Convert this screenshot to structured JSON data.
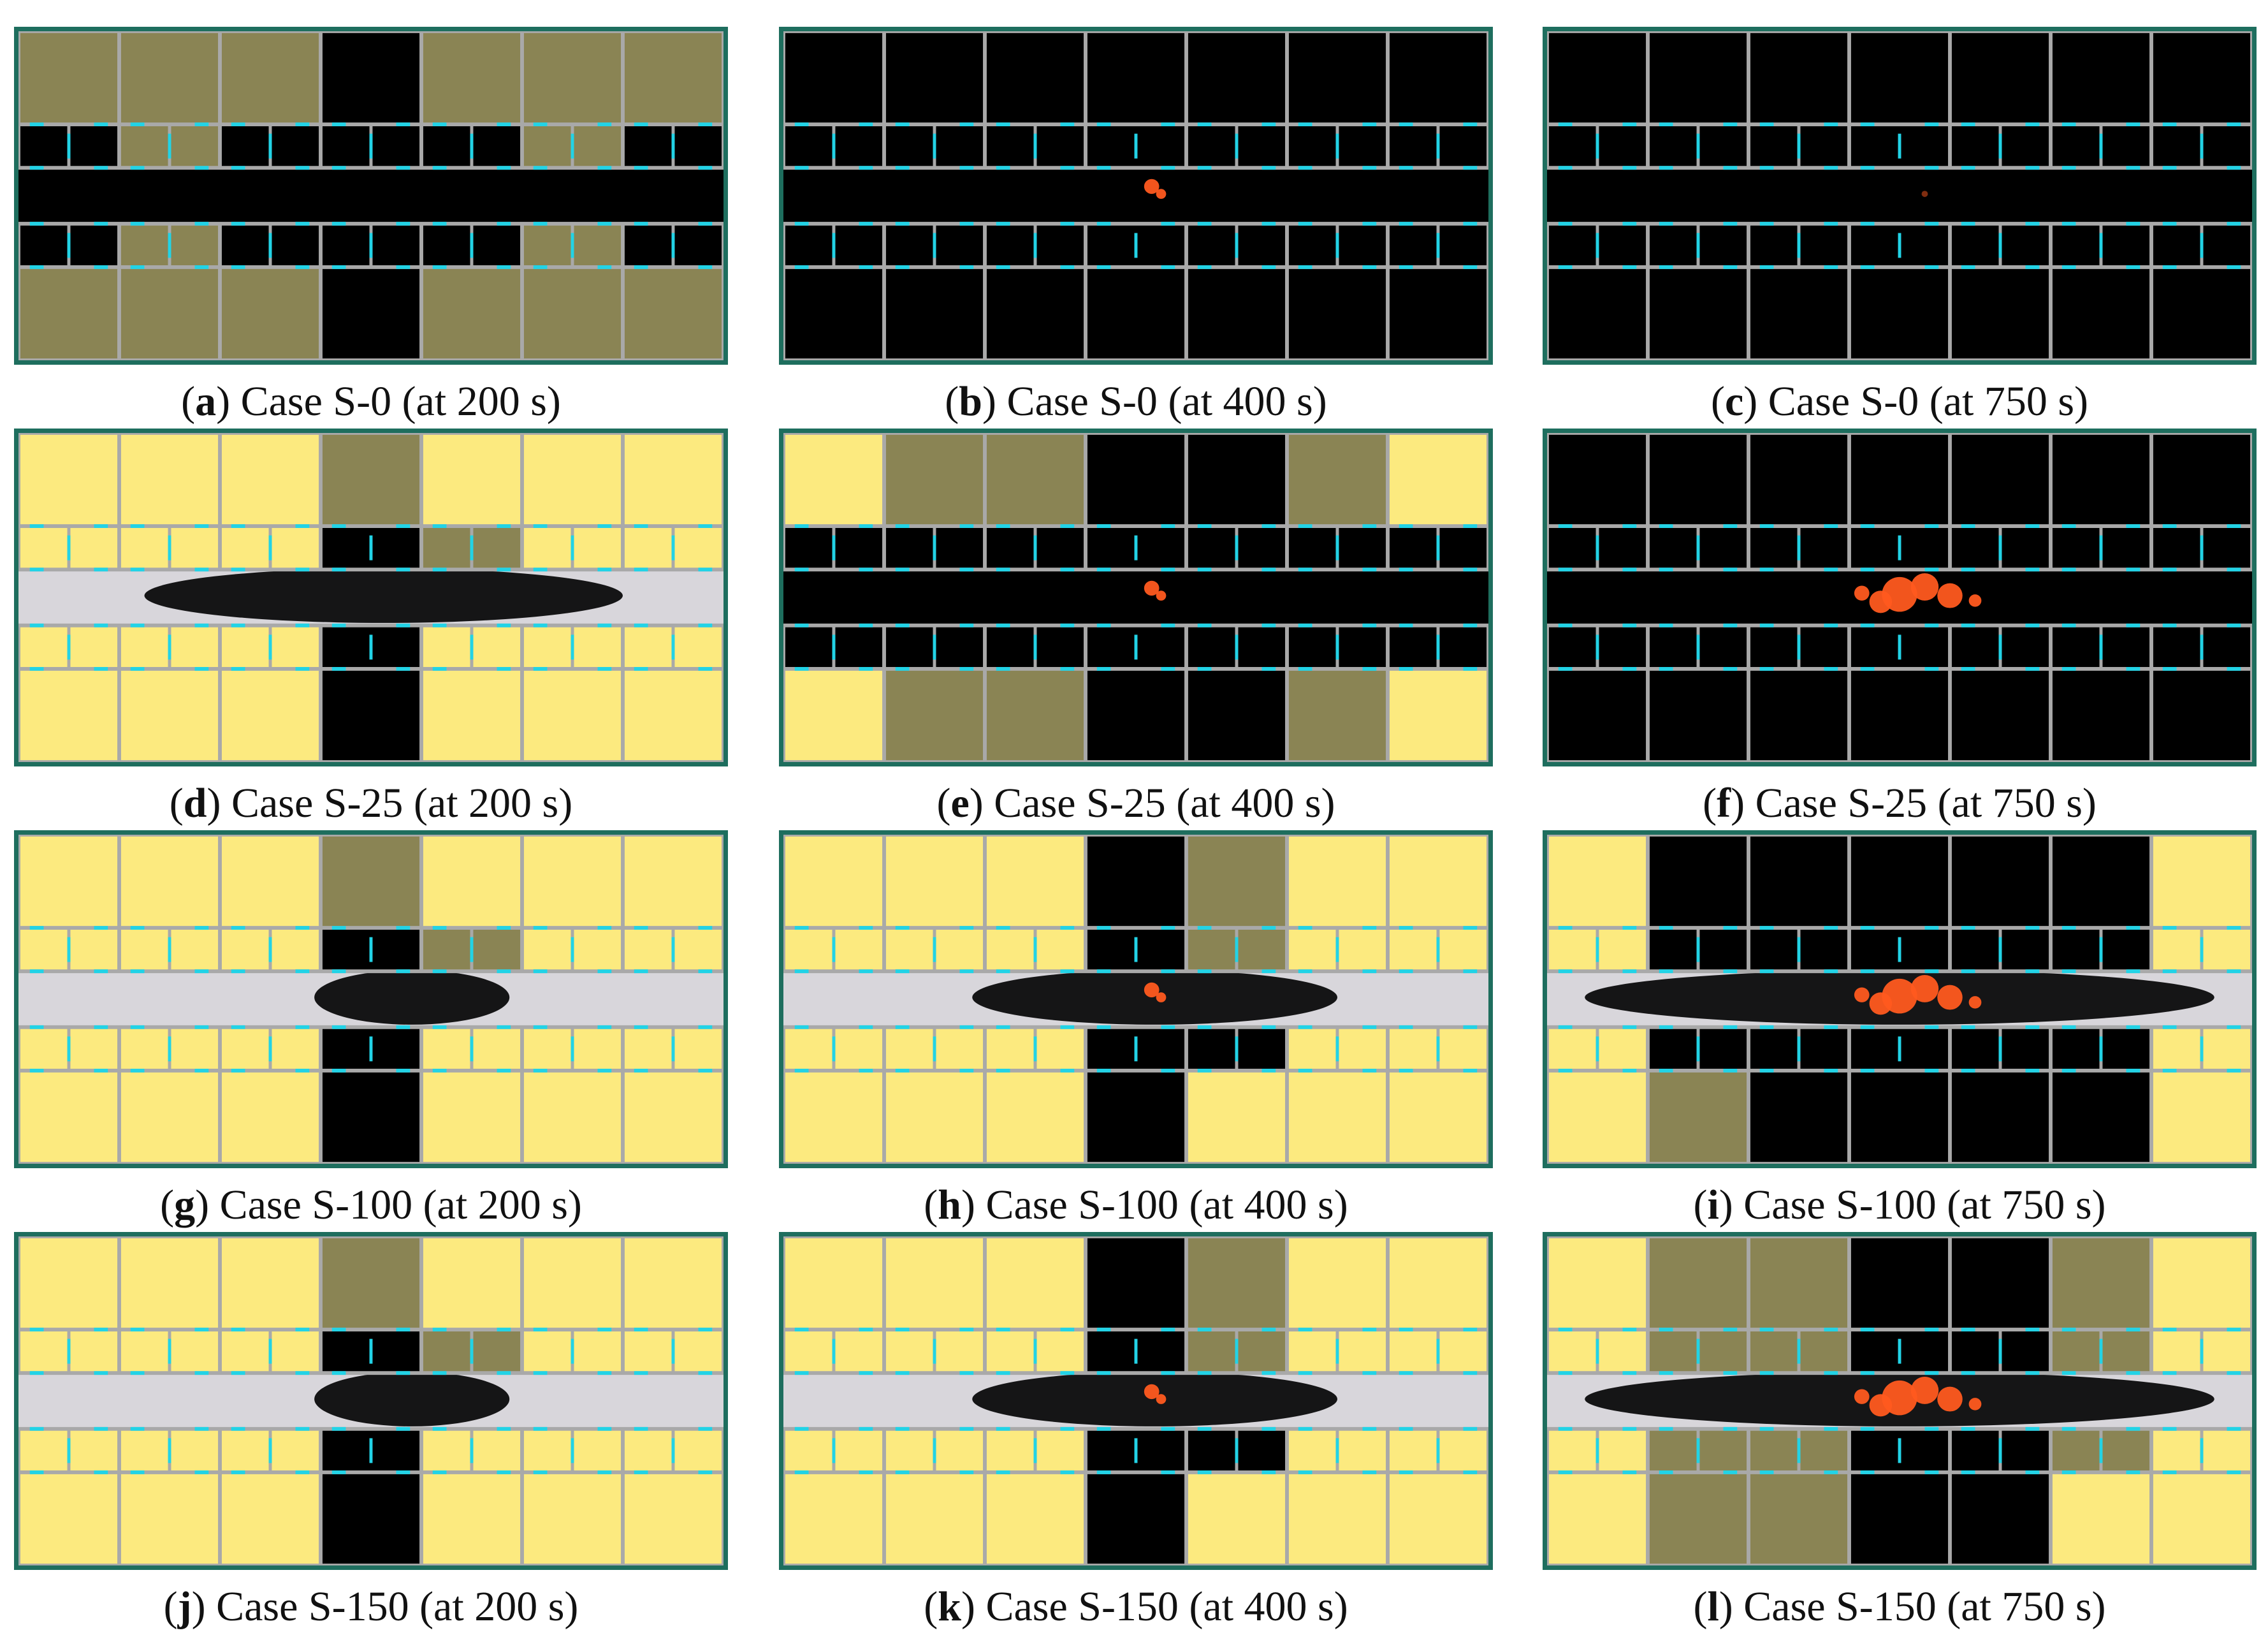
{
  "figure": {
    "colors": {
      "background": "#ffffff",
      "frame": "#1e6e5e",
      "wall": "#a9a9a9",
      "door": "#22d3e6",
      "clear_room": "#fcea7f",
      "clear_corridor": "#d8d6db",
      "smoke": "#000000",
      "partial_smoke": "#8a8454",
      "fire": "#ff5a1f"
    },
    "panels": [
      {
        "letter": "a",
        "case": "Case S-0",
        "time": "(at 200 s)",
        "state": "partial",
        "corridor": "smoke",
        "fire": "none"
      },
      {
        "letter": "b",
        "case": "Case S-0",
        "time": "(at 400 s)",
        "state": "smoke",
        "corridor": "smoke",
        "fire": "small"
      },
      {
        "letter": "c",
        "case": "Case S-0",
        "time": "(at 750 s)",
        "state": "smoke",
        "corridor": "smoke",
        "fire": "faint"
      },
      {
        "letter": "d",
        "case": "Case S-25",
        "time": "(at 200 s)",
        "state": "early",
        "corridor": "plume",
        "fire": "none"
      },
      {
        "letter": "e",
        "case": "Case S-25",
        "time": "(at 400 s)",
        "state": "mixed",
        "corridor": "smoke",
        "fire": "small"
      },
      {
        "letter": "f",
        "case": "Case S-25",
        "time": "(at 750 s)",
        "state": "smoke",
        "corridor": "smoke",
        "fire": "large"
      },
      {
        "letter": "g",
        "case": "Case S-100",
        "time": "(at 200 s)",
        "state": "early",
        "corridor": "plume-small",
        "fire": "none"
      },
      {
        "letter": "h",
        "case": "Case S-100",
        "time": "(at 400 s)",
        "state": "mid",
        "corridor": "plume-wide",
        "fire": "small"
      },
      {
        "letter": "i",
        "case": "Case S-100",
        "time": "(at 750 s)",
        "state": "late",
        "corridor": "plume-full",
        "fire": "large"
      },
      {
        "letter": "j",
        "case": "Case S-150",
        "time": "(at 200 s)",
        "state": "early",
        "corridor": "plume-small",
        "fire": "none"
      },
      {
        "letter": "k",
        "case": "Case S-150",
        "time": "(at 400 s)",
        "state": "mid",
        "corridor": "plume-wide",
        "fire": "small"
      },
      {
        "letter": "l",
        "case": "Case S-150",
        "time": "(at 750 s)",
        "state": "late2",
        "corridor": "plume-full",
        "fire": "large"
      }
    ]
  }
}
